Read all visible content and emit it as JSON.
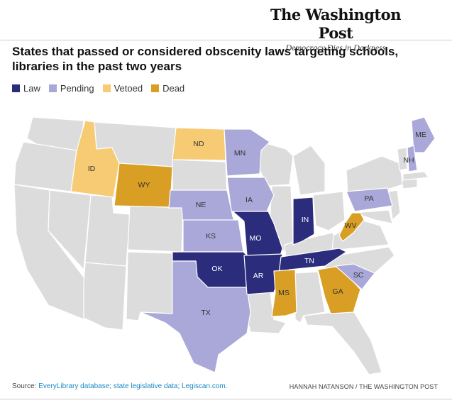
{
  "masthead": {
    "logo": "The Washington Post",
    "tagline": "Democracy Dies in Darkness"
  },
  "title": "States that passed or considered obscenity laws targeting schools, libraries in the past two years",
  "legend": [
    {
      "key": "law",
      "label": "Law",
      "color": "#2b2d7c"
    },
    {
      "key": "pending",
      "label": "Pending",
      "color": "#a9a8d9"
    },
    {
      "key": "vetoed",
      "label": "Vetoed",
      "color": "#f6cb74"
    },
    {
      "key": "dead",
      "label": "Dead",
      "color": "#d99e24"
    }
  ],
  "colors": {
    "none": "#dcdcdc",
    "label_dark": "#ffffff",
    "label_light": "#333333"
  },
  "states": [
    {
      "abbr": "ID",
      "status": "vetoed"
    },
    {
      "abbr": "ND",
      "status": "vetoed"
    },
    {
      "abbr": "WY",
      "status": "dead"
    },
    {
      "abbr": "MS",
      "status": "dead"
    },
    {
      "abbr": "GA",
      "status": "dead"
    },
    {
      "abbr": "WV",
      "status": "dead"
    },
    {
      "abbr": "MN",
      "status": "pending"
    },
    {
      "abbr": "IA",
      "status": "pending"
    },
    {
      "abbr": "NE",
      "status": "pending"
    },
    {
      "abbr": "KS",
      "status": "pending"
    },
    {
      "abbr": "TX",
      "status": "pending"
    },
    {
      "abbr": "PA",
      "status": "pending"
    },
    {
      "abbr": "SC",
      "status": "pending"
    },
    {
      "abbr": "ME",
      "status": "pending"
    },
    {
      "abbr": "NH",
      "status": "pending"
    },
    {
      "abbr": "MO",
      "status": "law"
    },
    {
      "abbr": "OK",
      "status": "law"
    },
    {
      "abbr": "AR",
      "status": "law"
    },
    {
      "abbr": "TN",
      "status": "law"
    },
    {
      "abbr": "IN",
      "status": "law"
    }
  ],
  "source": {
    "prefix": "Source: ",
    "link": "EveryLibrary database; state legislative data; Legiscan.com."
  },
  "credit": "HANNAH NATANSON / THE WASHINGTON POST"
}
